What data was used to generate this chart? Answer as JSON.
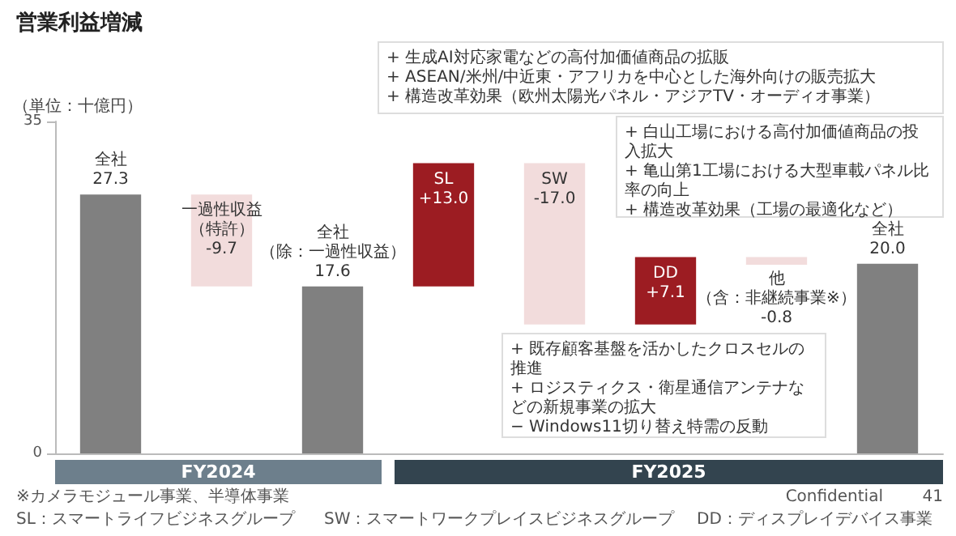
{
  "chart_data": {
    "type": "bar",
    "title": "営業利益増減",
    "ylabel": "（単位：十億円）",
    "categories": [
      "全社",
      "一過性収益（特許）",
      "全社（除：一過性収益）",
      "SL",
      "SW",
      "DD",
      "他（含：非継続事業※）",
      "全社"
    ],
    "values": [
      27.3,
      -9.7,
      17.6,
      13.0,
      -17.0,
      7.1,
      -0.8,
      20.0
    ],
    "base": [
      0,
      27.3,
      0,
      17.6,
      30.6,
      13.6,
      20.7,
      0
    ],
    "colors": [
      "#808080",
      "#f2dcdc",
      "#808080",
      "#9c1c22",
      "#f2dcdc",
      "#9c1c22",
      "#f2dcdc",
      "#808080"
    ],
    "value_labels": [
      "27.3",
      "-9.7",
      "17.6",
      "+13.0",
      "-17.0",
      "+7.1",
      "-0.8",
      "20.0"
    ],
    "ylim": [
      0,
      35
    ],
    "yticks": [
      0,
      35
    ],
    "grid": false,
    "annotations": [
      "FY2024",
      "FY2025",
      "+ 生成AI対応家電などの高付加価値商品の拡販\n+ ASEAN/米州/中近東・アフリカを中心とした海外向けの販売拡大\n+ 構造改革効果（欧州太陽光パネル・アジアTV・オーディオ事業）",
      "+ 白山工場における高付加価値商品の投入拡大\n+ 亀山第1工場における大型車載パネル比率の向上\n+ 構造改革効果（工場の最適化など）",
      "+ 既存顧客基盤を活かしたクロスセルの推進\n+ ロジスティクス・衛星通信アンテナなどの新規事業の拡大\n− Windows11切り替え特需の反動",
      "※カメラモジュール事業、半導体事業",
      "SL：スマートライフビジネスグループ",
      "SW：スマートワークプレイスビジネスグループ",
      "DD：ディスプレイデバイス事業",
      "Confidential",
      "41"
    ]
  }
}
